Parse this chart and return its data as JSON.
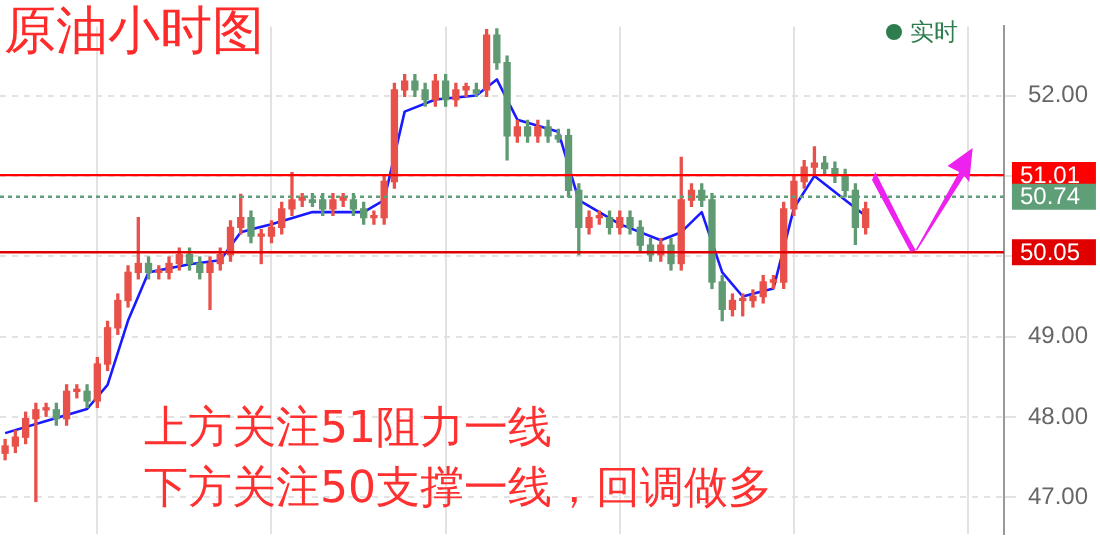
{
  "chart_data": {
    "type": "candlestick",
    "title": "原油小时图",
    "annotations": [
      "上方关注51阻力一线",
      "下方关注50支撑一线，回调做多",
      "实时"
    ],
    "categories": [
      null,
      null,
      null,
      null,
      null,
      null,
      null,
      null,
      null,
      null,
      null,
      null,
      null,
      null,
      null,
      null,
      null,
      null,
      null,
      null,
      null,
      null,
      null,
      null,
      null,
      null,
      null,
      null,
      null,
      null,
      null,
      null,
      null,
      null,
      null,
      null,
      null,
      null,
      null,
      null,
      null,
      null,
      null,
      null,
      null,
      null,
      null,
      null,
      null,
      null,
      null,
      null,
      null,
      null,
      null,
      null,
      null,
      null,
      null,
      null,
      null,
      null,
      null,
      null,
      null,
      null,
      null,
      null,
      null,
      null,
      null,
      null,
      null,
      null,
      null,
      null,
      null,
      null,
      null,
      null,
      null,
      null,
      null,
      null,
      null,
      null,
      null,
      null,
      null,
      null,
      null,
      null,
      null,
      null,
      null,
      null,
      null,
      null
    ],
    "ohlc": [
      [
        47.55,
        47.72,
        47.47,
        47.64
      ],
      [
        47.64,
        47.83,
        47.56,
        47.75
      ],
      [
        47.75,
        48.06,
        47.67,
        47.98
      ],
      [
        47.98,
        48.17,
        46.95,
        48.09
      ],
      [
        48.09,
        48.17,
        48.01,
        48.09
      ],
      [
        48.09,
        48.17,
        47.9,
        47.98
      ],
      [
        47.98,
        48.4,
        47.9,
        48.32
      ],
      [
        48.32,
        48.4,
        48.24,
        48.32
      ],
      [
        48.32,
        48.4,
        48.12,
        48.2
      ],
      [
        48.2,
        48.74,
        48.12,
        48.66
      ],
      [
        48.66,
        49.19,
        48.58,
        49.11
      ],
      [
        49.11,
        49.53,
        49.03,
        49.45
      ],
      [
        49.45,
        49.88,
        49.37,
        49.8
      ],
      [
        49.8,
        50.48,
        49.72,
        49.91
      ],
      [
        49.91,
        49.99,
        49.72,
        49.8
      ],
      [
        49.8,
        49.88,
        49.72,
        49.8
      ],
      [
        49.8,
        49.99,
        49.72,
        49.91
      ],
      [
        49.91,
        50.1,
        49.83,
        50.02
      ],
      [
        50.02,
        50.1,
        49.83,
        49.91
      ],
      [
        49.91,
        49.99,
        49.72,
        49.8
      ],
      [
        49.8,
        49.99,
        49.34,
        49.91
      ],
      [
        49.91,
        50.1,
        49.83,
        50.02
      ],
      [
        50.02,
        50.44,
        49.94,
        50.36
      ],
      [
        50.36,
        50.77,
        50.28,
        50.48
      ],
      [
        50.48,
        50.56,
        50.17,
        50.25
      ],
      [
        50.25,
        50.33,
        49.91,
        50.25
      ],
      [
        50.25,
        50.44,
        50.17,
        50.36
      ],
      [
        50.36,
        50.67,
        50.28,
        50.59
      ],
      [
        50.59,
        51.04,
        50.51,
        50.7
      ],
      [
        50.7,
        50.78,
        50.62,
        50.73
      ],
      [
        50.7,
        50.78,
        50.62,
        50.67
      ],
      [
        50.7,
        50.78,
        50.51,
        50.59
      ],
      [
        50.59,
        50.78,
        50.51,
        50.7
      ],
      [
        50.7,
        50.78,
        50.62,
        50.74
      ],
      [
        50.7,
        50.78,
        50.51,
        50.59
      ],
      [
        50.59,
        50.67,
        50.4,
        50.48
      ],
      [
        50.48,
        50.56,
        50.4,
        50.48
      ],
      [
        50.48,
        51.01,
        50.4,
        50.93
      ],
      [
        50.93,
        52.15,
        50.85,
        52.07
      ],
      [
        52.07,
        52.26,
        51.99,
        52.18
      ],
      [
        52.18,
        52.26,
        51.99,
        52.07
      ],
      [
        52.07,
        52.15,
        51.87,
        51.95
      ],
      [
        51.95,
        52.26,
        51.87,
        52.18
      ],
      [
        52.18,
        52.26,
        51.87,
        51.95
      ],
      [
        51.95,
        52.15,
        51.87,
        52.07
      ],
      [
        52.07,
        52.15,
        51.99,
        52.11
      ],
      [
        52.07,
        52.15,
        51.99,
        52.03
      ],
      [
        52.07,
        52.82,
        51.99,
        52.75
      ],
      [
        52.75,
        52.83,
        52.33,
        52.41
      ],
      [
        52.41,
        52.49,
        51.2,
        51.5
      ],
      [
        51.5,
        51.69,
        51.42,
        51.61
      ],
      [
        51.61,
        51.69,
        51.42,
        51.5
      ],
      [
        51.5,
        51.69,
        51.42,
        51.61
      ],
      [
        51.61,
        51.69,
        51.42,
        51.5
      ],
      [
        51.5,
        51.58,
        51.42,
        51.46
      ],
      [
        51.5,
        51.58,
        50.74,
        50.82
      ],
      [
        50.82,
        50.9,
        50.02,
        50.36
      ],
      [
        50.36,
        50.56,
        50.28,
        50.48
      ],
      [
        50.48,
        50.56,
        50.4,
        50.48
      ],
      [
        50.48,
        50.56,
        50.28,
        50.36
      ],
      [
        50.36,
        50.56,
        50.28,
        50.48
      ],
      [
        50.48,
        50.56,
        50.28,
        50.36
      ],
      [
        50.36,
        50.44,
        50.06,
        50.14
      ],
      [
        50.14,
        50.22,
        49.94,
        50.02
      ],
      [
        50.02,
        50.22,
        49.94,
        50.14
      ],
      [
        50.14,
        50.22,
        49.83,
        49.91
      ],
      [
        49.91,
        51.23,
        49.83,
        50.7
      ],
      [
        50.7,
        50.9,
        50.62,
        50.82
      ],
      [
        50.82,
        50.9,
        50.62,
        50.7
      ],
      [
        50.7,
        50.78,
        49.6,
        49.68
      ],
      [
        49.68,
        49.76,
        49.2,
        49.34
      ],
      [
        49.34,
        49.53,
        49.26,
        49.45
      ],
      [
        49.45,
        49.53,
        49.26,
        49.45
      ],
      [
        49.45,
        49.58,
        49.37,
        49.5
      ],
      [
        49.5,
        49.76,
        49.42,
        49.68
      ],
      [
        49.68,
        49.76,
        49.6,
        49.68
      ],
      [
        49.68,
        50.67,
        49.6,
        50.59
      ],
      [
        50.59,
        51.01,
        50.51,
        50.93
      ],
      [
        50.93,
        51.19,
        50.85,
        51.11
      ],
      [
        51.11,
        51.36,
        51.03,
        51.16
      ],
      [
        51.16,
        51.24,
        51.01,
        51.09
      ],
      [
        51.09,
        51.17,
        50.92,
        51.0
      ],
      [
        51.0,
        51.08,
        50.74,
        50.82
      ],
      [
        50.82,
        50.9,
        50.15,
        50.36
      ],
      [
        50.36,
        50.67,
        50.28,
        50.59
      ],
      null,
      null,
      null,
      null,
      null,
      null,
      null,
      null,
      null,
      null,
      null,
      null,
      null
    ],
    "series": [
      {
        "type": "line",
        "color": "#1a1aff",
        "values": [
          47.8,
          null,
          null,
          null,
          47.95,
          null,
          null,
          null,
          48.1,
          null,
          48.4,
          null,
          49.2,
          null,
          49.8,
          null,
          null,
          null,
          49.9,
          null,
          null,
          49.95,
          null,
          50.3,
          null,
          null,
          50.4,
          null,
          null,
          null,
          50.55,
          null,
          null,
          null,
          null,
          50.55,
          null,
          50.7,
          null,
          51.8,
          null,
          null,
          51.95,
          null,
          null,
          null,
          52.0,
          null,
          52.2,
          null,
          51.7,
          null,
          null,
          null,
          51.55,
          null,
          50.7,
          null,
          null,
          null,
          50.4,
          null,
          null,
          null,
          50.2,
          null,
          50.3,
          null,
          50.55,
          null,
          49.8,
          null,
          49.5,
          null,
          null,
          49.6,
          null,
          50.6,
          null,
          51.0,
          null,
          null,
          null,
          50.6,
          50.5,
          null,
          null,
          null,
          null,
          null,
          null,
          null,
          null,
          null,
          null,
          null,
          null,
          null
        ]
      }
    ],
    "ylim": [
      46.55,
      52.86
    ],
    "yticks": [
      {
        "value": 47,
        "label": "47.00"
      },
      {
        "value": 48,
        "label": "48.00"
      },
      {
        "value": 49,
        "label": "49.00"
      },
      {
        "value": 50,
        "label": null
      },
      {
        "value": 51,
        "label": null
      },
      {
        "value": 52,
        "label": "52.00"
      }
    ],
    "tick_labels": "y",
    "grid": true,
    "legend": false,
    "ref_lines": [
      {
        "axis": "y",
        "value": 51.01,
        "label": "51.01",
        "color": "#ff0000"
      },
      {
        "axis": "y",
        "value": 50.74,
        "label": "50.74",
        "color": "#5f9f78",
        "line_style": "dotted"
      },
      {
        "axis": "y",
        "value": 50.05,
        "label": "50.05",
        "color": "#e00000"
      }
    ]
  }
}
